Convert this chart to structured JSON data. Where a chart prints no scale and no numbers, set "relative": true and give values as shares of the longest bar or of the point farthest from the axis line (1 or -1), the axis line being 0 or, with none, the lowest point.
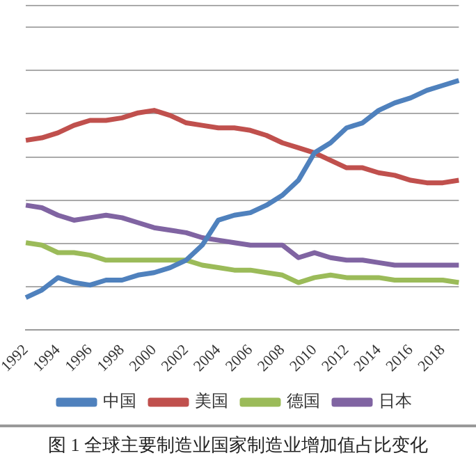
{
  "chart_data": {
    "type": "line",
    "title": "图 1 全球主要制造业国家制造业增加值占比变化",
    "relative": true,
    "grid": "y",
    "legend": "bottom",
    "marker": "none",
    "line_style": "solid",
    "categories": [
      "1992",
      null,
      "1994",
      null,
      "1996",
      null,
      "1998",
      null,
      "2000",
      null,
      "2002",
      null,
      "2004",
      null,
      "2006",
      null,
      "2008",
      null,
      "2010",
      null,
      "2012",
      null,
      "2014",
      null,
      "2016",
      null,
      "2018",
      null
    ],
    "series": [
      {
        "name": "中国",
        "color": "#4f81bd",
        "values": [
          0.13,
          0.16,
          0.21,
          0.19,
          0.18,
          0.2,
          0.2,
          0.22,
          0.23,
          0.25,
          0.28,
          0.34,
          0.44,
          0.46,
          0.47,
          0.5,
          0.54,
          0.6,
          0.71,
          0.75,
          0.81,
          0.83,
          0.88,
          0.91,
          0.93,
          0.96,
          0.98,
          1
        ]
      },
      {
        "name": "美国",
        "color": "#c0504d",
        "values": [
          0.76,
          0.77,
          0.79,
          0.82,
          0.84,
          0.84,
          0.85,
          0.87,
          0.88,
          0.86,
          0.83,
          0.82,
          0.81,
          0.81,
          0.8,
          0.78,
          0.75,
          0.73,
          0.71,
          0.68,
          0.65,
          0.65,
          0.63,
          0.62,
          0.6,
          0.59,
          0.59,
          0.6
        ]
      },
      {
        "name": "德国",
        "color": "#9bbb59",
        "values": [
          0.35,
          0.34,
          0.31,
          0.31,
          0.3,
          0.28,
          0.28,
          0.28,
          0.28,
          0.28,
          0.28,
          0.26,
          0.25,
          0.24,
          0.24,
          0.23,
          0.22,
          0.19,
          0.21,
          0.22,
          0.21,
          0.21,
          0.21,
          0.2,
          0.2,
          0.2,
          0.2,
          0.19
        ]
      },
      {
        "name": "日本",
        "color": "#8064a2",
        "values": [
          0.5,
          0.49,
          0.46,
          0.44,
          0.45,
          0.46,
          0.45,
          0.43,
          0.41,
          0.4,
          0.39,
          0.37,
          0.36,
          0.35,
          0.34,
          0.34,
          0.34,
          0.29,
          0.31,
          0.29,
          0.28,
          0.28,
          0.27,
          0.26,
          0.26,
          0.26,
          0.26,
          0.26
        ]
      }
    ]
  }
}
